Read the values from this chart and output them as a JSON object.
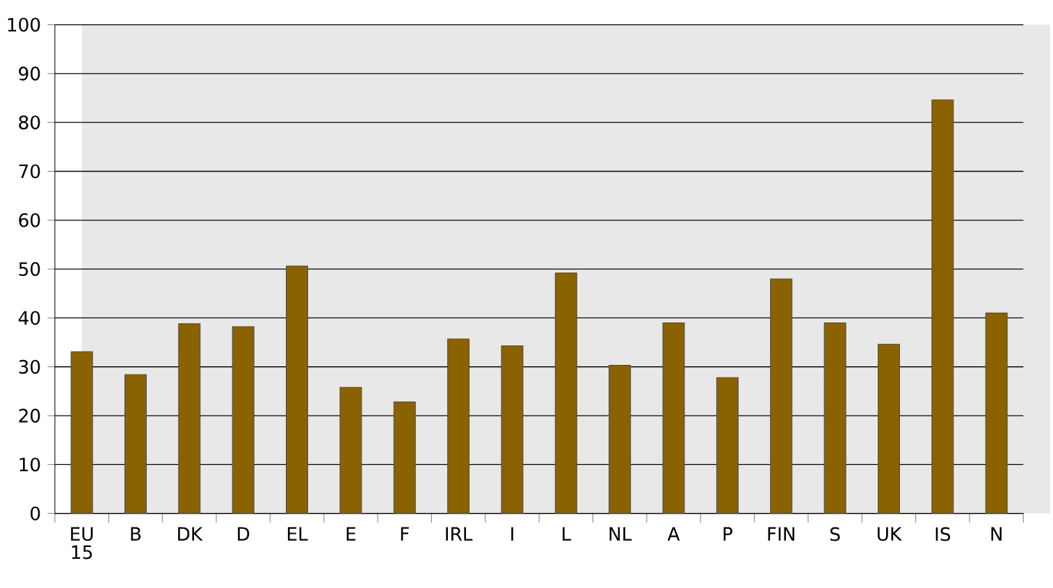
{
  "chart_data": {
    "type": "bar",
    "categories": [
      "EU 15",
      "B",
      "DK",
      "D",
      "EL",
      "E",
      "F",
      "IRL",
      "I",
      "L",
      "NL",
      "A",
      "P",
      "FIN",
      "S",
      "UK",
      "IS",
      "N"
    ],
    "values": [
      33.1,
      28.4,
      38.8,
      38.2,
      50.6,
      25.8,
      22.8,
      35.7,
      34.3,
      49.2,
      30.3,
      39.0,
      27.8,
      48.0,
      39.0,
      34.6,
      84.6,
      41.0
    ],
    "color": "#8a6200",
    "ylim": [
      0,
      100
    ],
    "yticks": [
      0,
      10,
      20,
      30,
      40,
      50,
      60,
      70,
      80,
      90,
      100
    ],
    "grid": "y"
  }
}
